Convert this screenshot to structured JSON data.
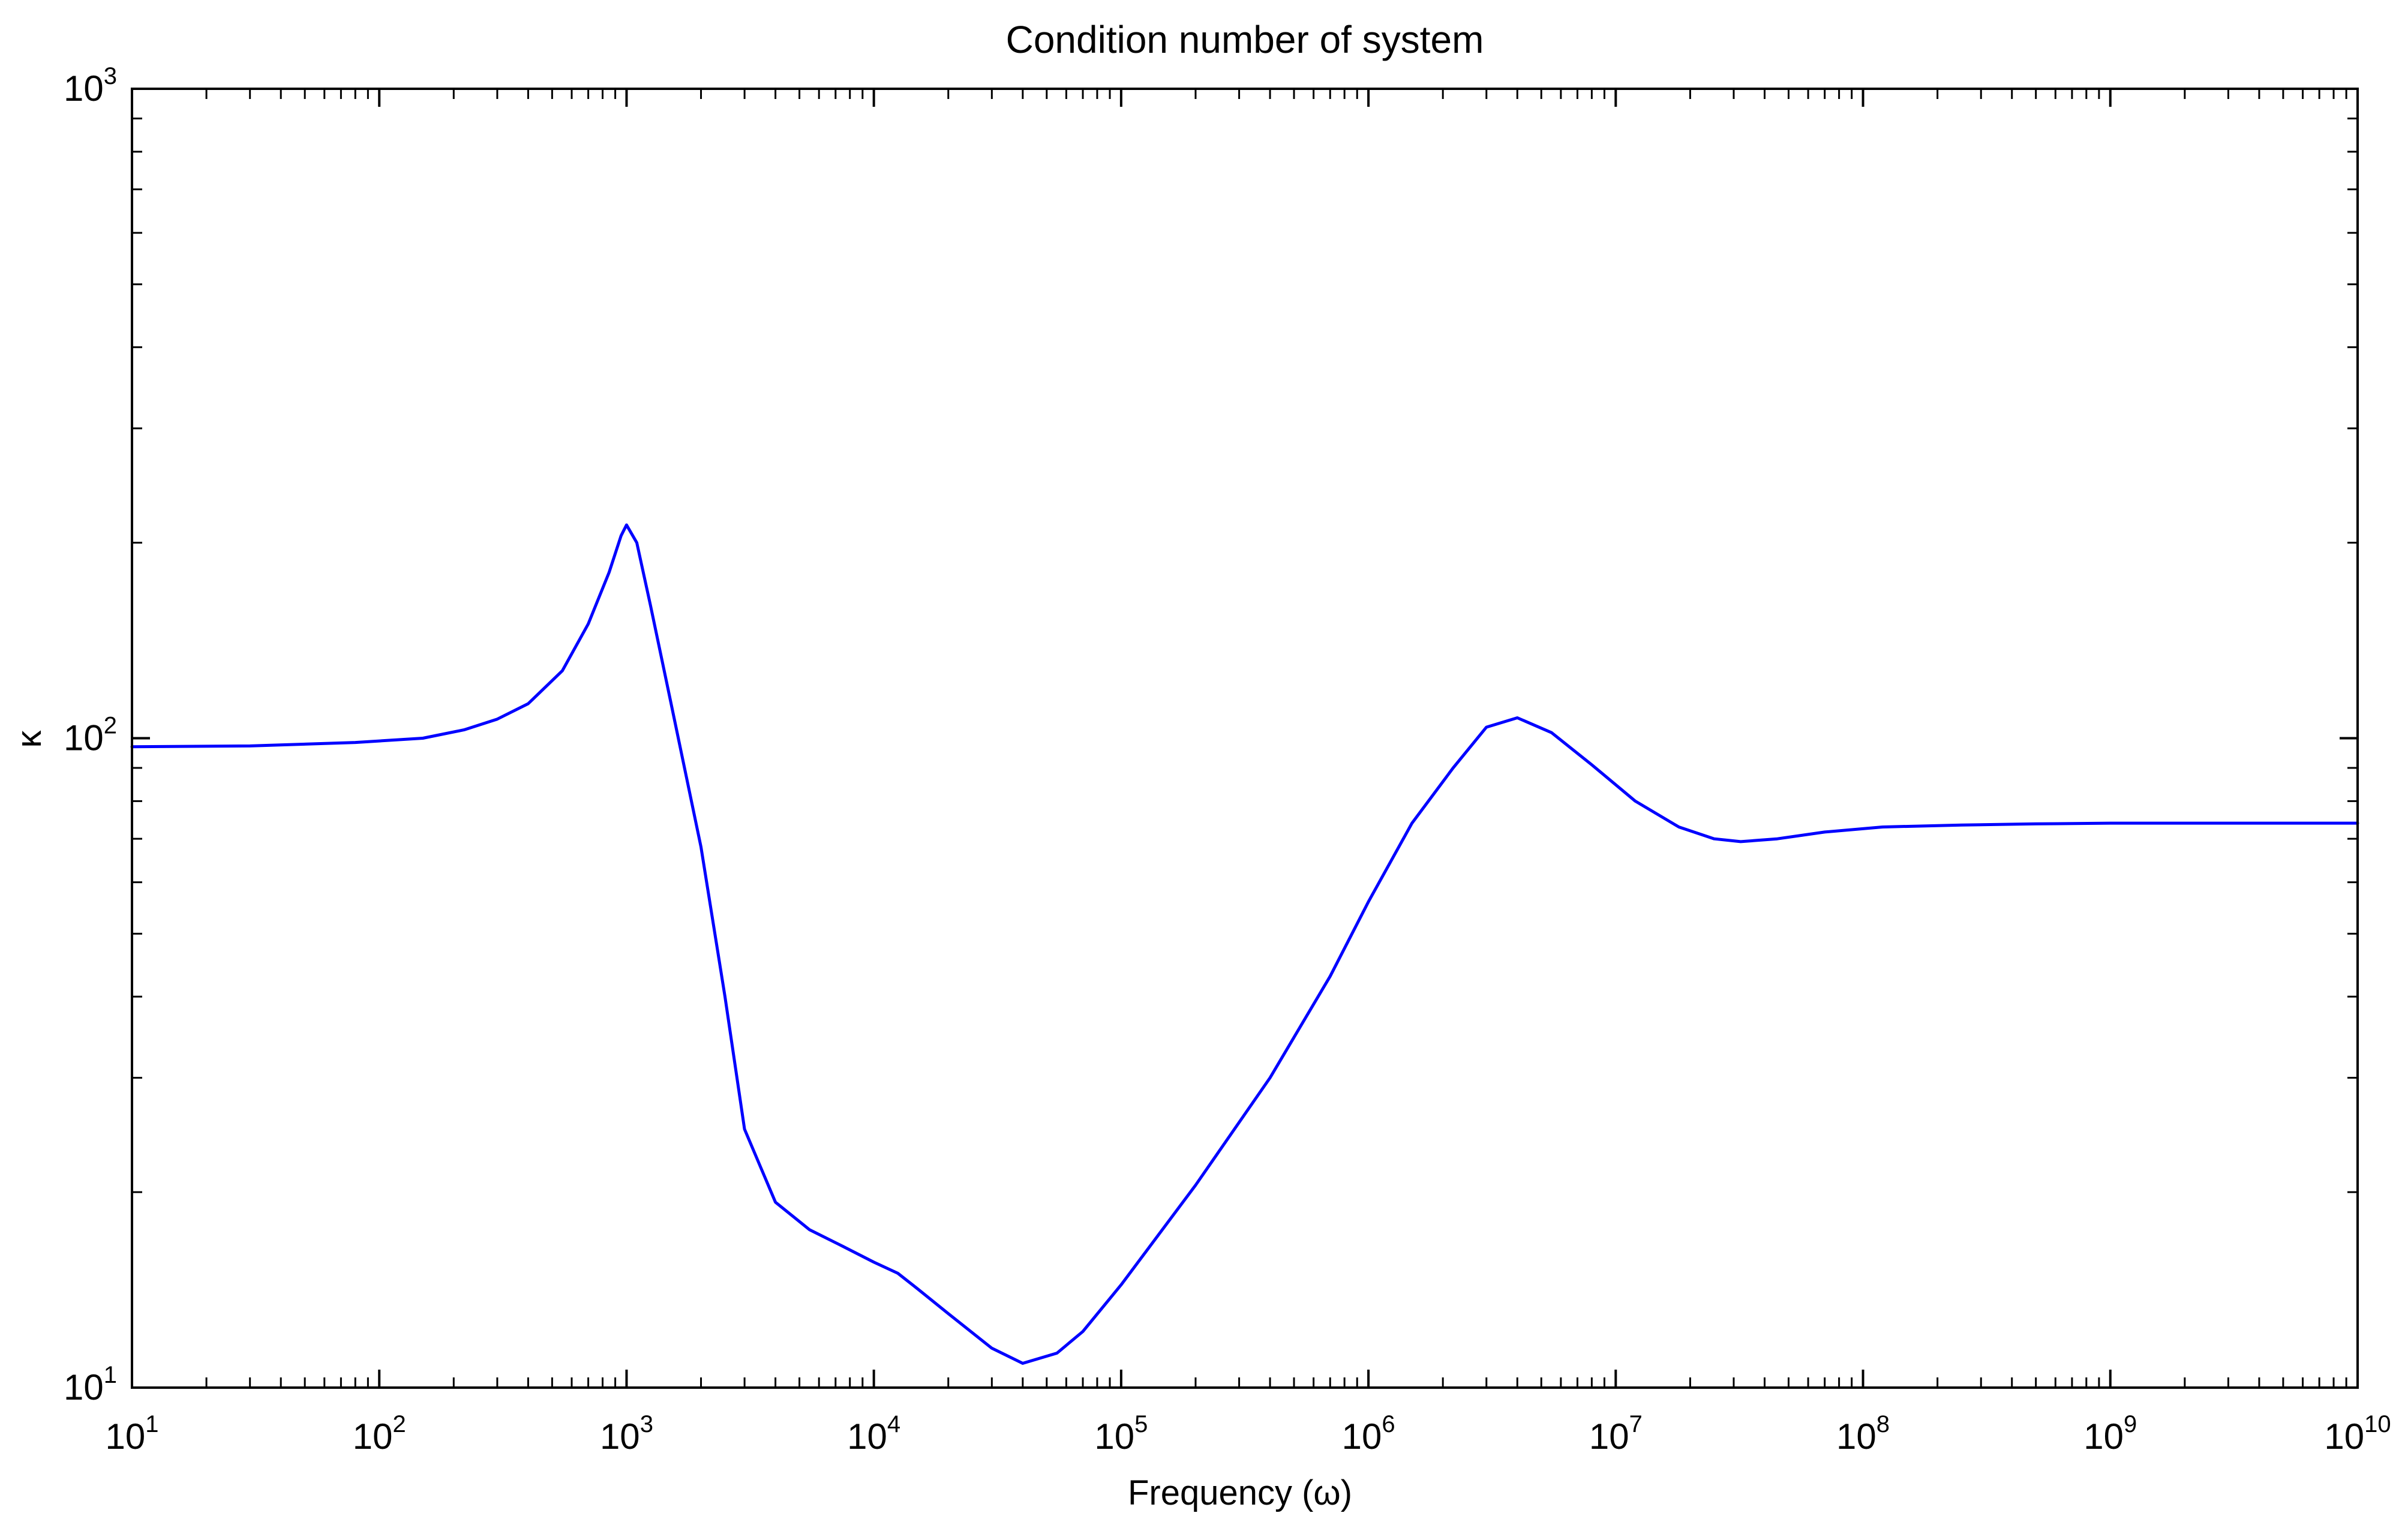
{
  "chart_data": {
    "type": "line",
    "title": "Condition number of system",
    "xlabel": "Frequency (ω)",
    "ylabel": "κ",
    "xscale": "log",
    "yscale": "log",
    "xlim": [
      10,
      10000000000
    ],
    "ylim": [
      10,
      1000
    ],
    "grid": false,
    "legend": "none",
    "x_ticks": [
      {
        "base": "10",
        "exp": "1"
      },
      {
        "base": "10",
        "exp": "2"
      },
      {
        "base": "10",
        "exp": "3"
      },
      {
        "base": "10",
        "exp": "4"
      },
      {
        "base": "10",
        "exp": "5"
      },
      {
        "base": "10",
        "exp": "6"
      },
      {
        "base": "10",
        "exp": "7"
      },
      {
        "base": "10",
        "exp": "8"
      },
      {
        "base": "10",
        "exp": "9"
      },
      {
        "base": "10",
        "exp": "10"
      }
    ],
    "y_ticks": [
      {
        "base": "10",
        "exp": "1"
      },
      {
        "base": "10",
        "exp": "2"
      },
      {
        "base": "10",
        "exp": "3"
      }
    ],
    "series": [
      {
        "color": "#0000ff",
        "x": [
          10,
          30,
          80,
          150,
          220,
          300,
          400,
          550,
          700,
          850,
          950,
          1000,
          1100,
          1250,
          1500,
          2000,
          2500,
          3000,
          4000,
          5500,
          7500,
          10000,
          12500,
          15000,
          20000,
          30000,
          40000,
          55000,
          70000,
          100000,
          200000,
          400000,
          700000,
          1000000,
          1500000,
          2200000,
          3000000,
          4000000,
          5500000,
          8000000,
          12000000,
          18000000,
          25000000,
          32000000,
          45000000,
          70000000,
          120000000,
          250000000,
          500000000,
          1000000000,
          3000000000,
          10000000000
        ],
        "y": [
          97,
          97.3,
          98.5,
          100,
          103,
          107,
          113,
          127,
          150,
          180,
          205,
          213,
          200,
          160,
          115,
          68,
          40,
          25,
          19.3,
          17.5,
          16.5,
          15.6,
          15,
          14.2,
          13,
          11.5,
          10.9,
          11.3,
          12.2,
          14.4,
          20.5,
          30,
          43,
          56,
          74,
          90,
          104,
          107.5,
          102,
          91,
          80,
          73,
          70,
          69.3,
          70,
          71.7,
          73,
          73.5,
          73.8,
          74,
          74,
          74
        ]
      }
    ]
  }
}
